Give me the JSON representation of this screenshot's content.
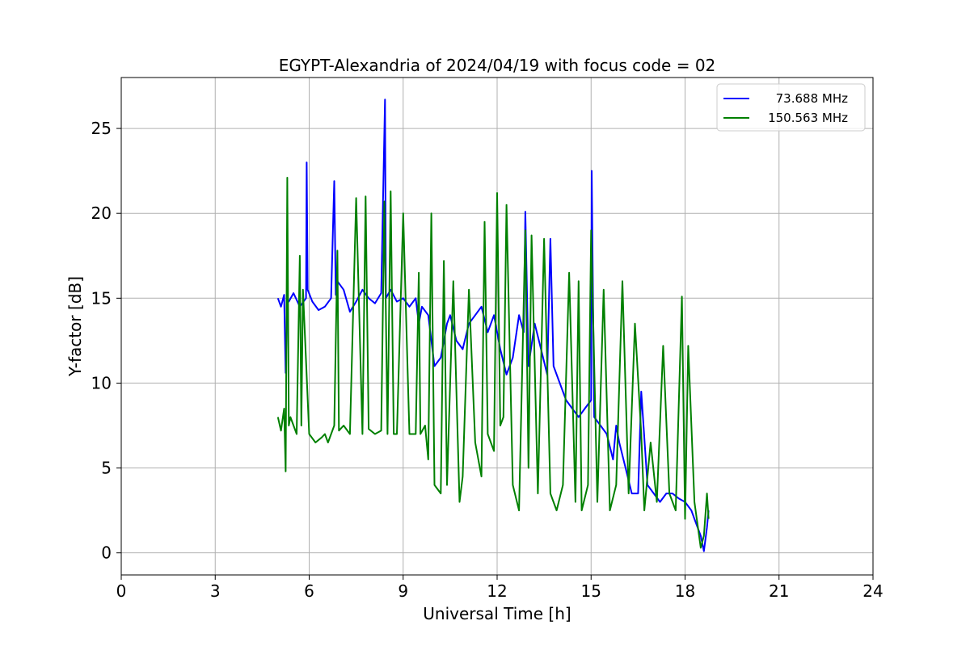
{
  "chart_data": {
    "type": "line",
    "title": "EGYPT-Alexandria of 2024/04/19 with focus code = 02",
    "xlabel": "Universal Time [h]",
    "ylabel": "Y-factor [dB]",
    "xlim": [
      0,
      24
    ],
    "ylim": [
      -1.3,
      28
    ],
    "xticks": [
      0,
      3,
      6,
      9,
      12,
      15,
      18,
      21,
      24
    ],
    "yticks": [
      0,
      5,
      10,
      15,
      20,
      25
    ],
    "grid": true,
    "legend_position": "top-right",
    "series": [
      {
        "name": "73.688 MHz",
        "color": "#0000ff",
        "x": [
          5.0,
          5.1,
          5.2,
          5.25,
          5.3,
          5.35,
          5.5,
          5.7,
          5.9,
          5.92,
          5.95,
          6.1,
          6.3,
          6.5,
          6.7,
          6.8,
          6.85,
          6.9,
          7.1,
          7.3,
          7.5,
          7.7,
          7.9,
          8.1,
          8.3,
          8.42,
          8.45,
          8.6,
          8.8,
          9.0,
          9.2,
          9.4,
          9.5,
          9.6,
          9.8,
          10.0,
          10.2,
          10.4,
          10.5,
          10.7,
          10.9,
          11.1,
          11.3,
          11.5,
          11.7,
          11.9,
          12.1,
          12.3,
          12.5,
          12.7,
          12.85,
          12.9,
          13.0,
          13.2,
          13.4,
          13.6,
          13.7,
          13.8,
          14.0,
          14.2,
          14.4,
          14.6,
          14.8,
          15.0,
          15.02,
          15.1,
          15.3,
          15.5,
          15.7,
          15.8,
          15.9,
          16.1,
          16.3,
          16.5,
          16.6,
          16.8,
          17.0,
          17.2,
          17.4,
          17.6,
          17.8,
          18.0,
          18.2,
          18.3,
          18.5,
          18.6,
          18.7,
          18.75
        ],
        "y": [
          15.0,
          14.5,
          15.2,
          10.6,
          15.0,
          14.8,
          15.3,
          14.5,
          15.0,
          23.0,
          15.5,
          14.8,
          14.3,
          14.5,
          15.0,
          21.9,
          15.2,
          16.0,
          15.5,
          14.2,
          14.8,
          15.5,
          15.0,
          14.7,
          15.3,
          26.7,
          15.0,
          15.5,
          14.8,
          15.0,
          14.5,
          15.0,
          13.5,
          14.5,
          14.0,
          11.0,
          11.5,
          13.5,
          14.0,
          12.5,
          12.0,
          13.5,
          14.0,
          14.5,
          13.0,
          14.0,
          12.0,
          10.5,
          11.5,
          14.0,
          13.0,
          20.1,
          11.0,
          13.5,
          12.0,
          10.5,
          18.5,
          11.0,
          10.0,
          9.0,
          8.5,
          8.0,
          8.5,
          9.0,
          22.5,
          8.0,
          7.5,
          7.0,
          5.5,
          7.5,
          6.5,
          5.0,
          3.5,
          3.5,
          9.5,
          4.0,
          3.5,
          3.0,
          3.5,
          3.5,
          3.2,
          3.0,
          2.5,
          2.0,
          1.0,
          0.1,
          1.5,
          2.5
        ]
      },
      {
        "name": "150.563 MHz",
        "color": "#008000",
        "x": [
          5.0,
          5.1,
          5.2,
          5.25,
          5.3,
          5.35,
          5.4,
          5.6,
          5.7,
          5.75,
          5.8,
          6.0,
          6.2,
          6.4,
          6.5,
          6.6,
          6.8,
          6.9,
          6.95,
          7.1,
          7.3,
          7.5,
          7.7,
          7.8,
          7.9,
          8.1,
          8.3,
          8.4,
          8.5,
          8.6,
          8.7,
          8.8,
          9.0,
          9.2,
          9.4,
          9.5,
          9.55,
          9.7,
          9.8,
          9.9,
          10.0,
          10.2,
          10.3,
          10.4,
          10.6,
          10.8,
          10.9,
          11.1,
          11.3,
          11.5,
          11.6,
          11.7,
          11.9,
          12.0,
          12.1,
          12.2,
          12.3,
          12.5,
          12.7,
          12.9,
          13.0,
          13.1,
          13.3,
          13.5,
          13.7,
          13.9,
          14.1,
          14.3,
          14.5,
          14.6,
          14.7,
          14.9,
          15.0,
          15.2,
          15.4,
          15.6,
          15.8,
          16.0,
          16.2,
          16.4,
          16.6,
          16.7,
          16.9,
          17.1,
          17.3,
          17.5,
          17.7,
          17.9,
          18.0,
          18.1,
          18.3,
          18.5,
          18.6,
          18.7,
          18.75
        ],
        "y": [
          8.0,
          7.2,
          8.5,
          4.8,
          22.1,
          7.5,
          8.0,
          7.0,
          17.5,
          7.5,
          15.5,
          7.0,
          6.5,
          6.8,
          7.0,
          6.5,
          7.5,
          17.8,
          7.2,
          7.5,
          7.0,
          20.9,
          7.0,
          21.0,
          7.3,
          7.0,
          7.2,
          20.7,
          7.0,
          21.3,
          7.0,
          7.0,
          20.0,
          7.0,
          7.0,
          16.5,
          7.0,
          7.5,
          5.5,
          20.0,
          4.0,
          3.5,
          17.2,
          4.0,
          16.0,
          3.0,
          4.5,
          15.5,
          6.5,
          4.5,
          19.5,
          7.0,
          6.0,
          21.2,
          7.5,
          8.0,
          20.5,
          4.0,
          2.5,
          19.0,
          5.0,
          18.7,
          3.5,
          18.5,
          3.5,
          2.5,
          4.0,
          16.5,
          3.0,
          16.0,
          2.5,
          4.0,
          19.0,
          3.0,
          15.5,
          2.5,
          4.0,
          16.0,
          3.5,
          13.5,
          7.0,
          2.5,
          6.5,
          3.0,
          12.2,
          3.5,
          2.5,
          15.1,
          2.0,
          12.2,
          3.0,
          0.3,
          1.0,
          3.5,
          2.0
        ]
      }
    ]
  }
}
